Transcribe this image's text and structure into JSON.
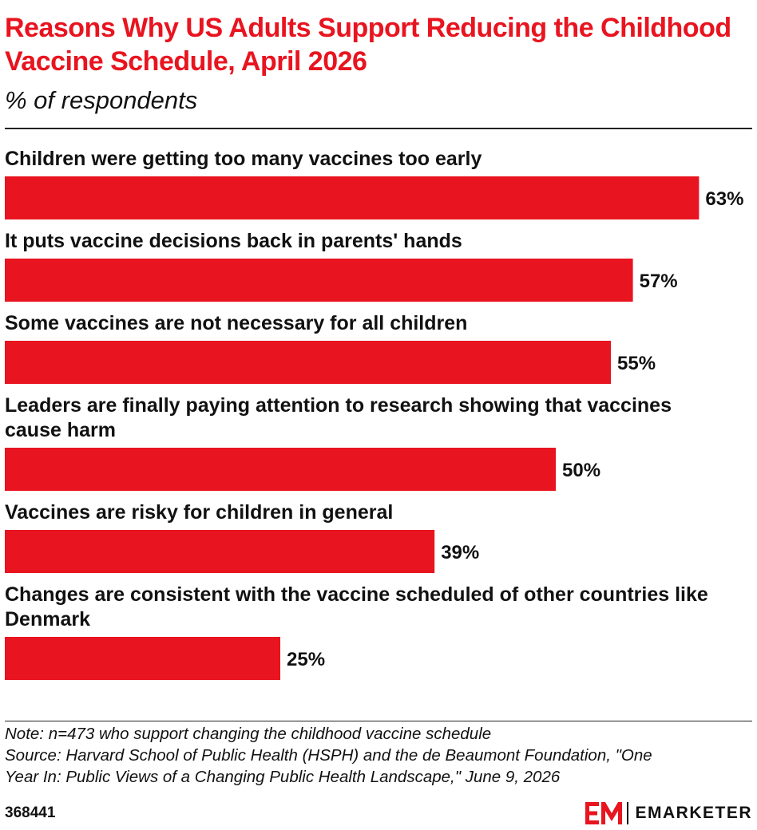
{
  "header": {
    "title": "Reasons Why US Adults Support Reducing the Childhood Vaccine Schedule, April 2026",
    "subtitle": "% of respondents"
  },
  "chart_data": {
    "type": "bar",
    "orientation": "horizontal",
    "title": "Reasons Why US Adults Support Reducing the Childhood Vaccine Schedule, April 2026",
    "subtitle": "% of respondents",
    "categories": [
      "Children were getting too many vaccines too early",
      "It puts vaccine decisions back in parents' hands",
      "Some vaccines are not necessary for all children",
      "Leaders are finally paying attention to research showing that vaccines cause harm",
      "Vaccines are risky for children in general",
      "Changes are consistent with the vaccine scheduled of other countries like Denmark"
    ],
    "category_lines": [
      [
        "Children were getting too many vaccines too early"
      ],
      [
        "It puts vaccine decisions back in parents' hands"
      ],
      [
        "Some vaccines are not necessary for all children"
      ],
      [
        "Leaders are finally paying attention to research showing that vaccines",
        "cause harm"
      ],
      [
        "Vaccines are risky for children in general"
      ],
      [
        "Changes are consistent with the vaccine scheduled of other countries like",
        "Denmark"
      ]
    ],
    "values": [
      63,
      57,
      55,
      50,
      39,
      25
    ],
    "value_labels": [
      "63%",
      "57%",
      "55%",
      "50%",
      "39%",
      "25%"
    ],
    "bar_color": "#e8141f",
    "grid": false,
    "legend": "none"
  },
  "footer": {
    "note": "Note: n=473 who support changing the childhood vaccine schedule",
    "source_line1": "Source: Harvard School of Public Health (HSPH) and the de Beaumont Foundation, \"One",
    "source_line2": "Year In: Public Views of a Changing Public Health Landscape,\" June 9, 2026",
    "chart_id": "368441",
    "brand": "EMARKETER"
  },
  "colors": {
    "accent": "#e8141f",
    "text": "#111111"
  }
}
